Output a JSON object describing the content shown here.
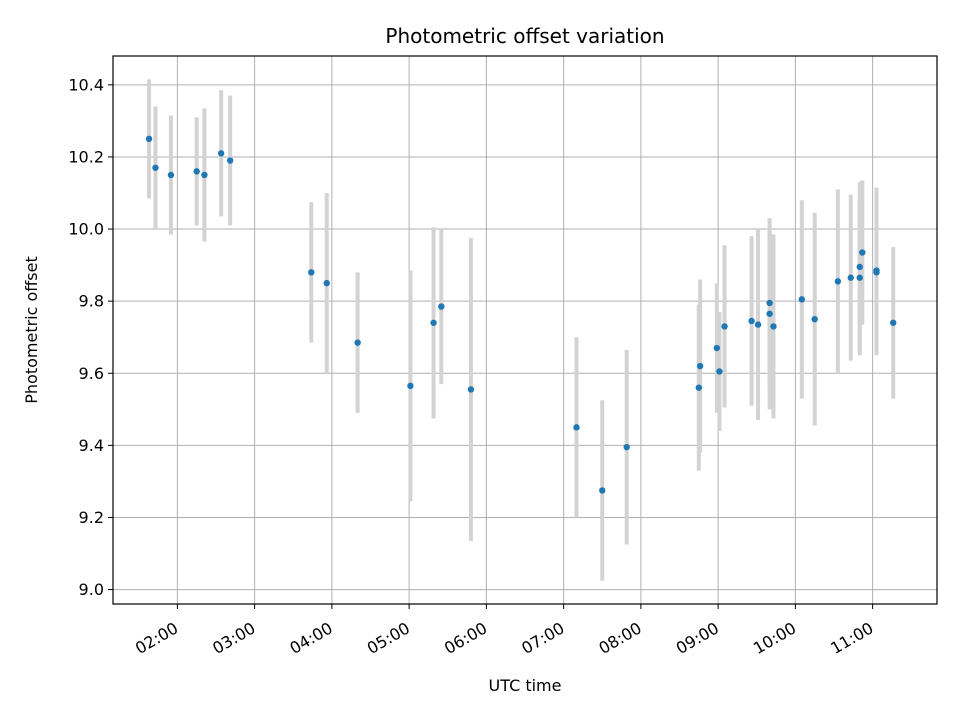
{
  "chart_data": {
    "type": "scatter",
    "title": "Photometric offset variation",
    "xlabel": "UTC time",
    "ylabel": "Photometric offset",
    "x_unit": "time of day (HH:MM)",
    "xlim": [
      "01:10",
      "11:50"
    ],
    "ylim": [
      8.96,
      10.48
    ],
    "x_ticks": [
      "02:00",
      "03:00",
      "04:00",
      "05:00",
      "06:00",
      "07:00",
      "08:00",
      "09:00",
      "10:00",
      "11:00"
    ],
    "y_ticks": [
      9.0,
      9.2,
      9.4,
      9.6,
      9.8,
      10.0,
      10.2,
      10.4
    ],
    "grid": true,
    "marker_color": "#1f77b4",
    "errorbar_color": "#d3d3d3",
    "points": [
      {
        "time": "01:38",
        "y": 10.25,
        "err": 0.165
      },
      {
        "time": "01:43",
        "y": 10.17,
        "err": 0.17
      },
      {
        "time": "01:55",
        "y": 10.15,
        "err": 0.165
      },
      {
        "time": "02:15",
        "y": 10.16,
        "err": 0.15
      },
      {
        "time": "02:21",
        "y": 10.15,
        "err": 0.185
      },
      {
        "time": "02:34",
        "y": 10.21,
        "err": 0.175
      },
      {
        "time": "02:41",
        "y": 10.19,
        "err": 0.18
      },
      {
        "time": "03:44",
        "y": 9.88,
        "err": 0.195
      },
      {
        "time": "03:56",
        "y": 9.85,
        "err": 0.25
      },
      {
        "time": "04:20",
        "y": 9.685,
        "err": 0.195
      },
      {
        "time": "05:01",
        "y": 9.565,
        "err": 0.32
      },
      {
        "time": "05:19",
        "y": 9.74,
        "err": 0.265
      },
      {
        "time": "05:25",
        "y": 9.785,
        "err": 0.215
      },
      {
        "time": "05:48",
        "y": 9.555,
        "err": 0.42
      },
      {
        "time": "07:10",
        "y": 9.45,
        "err": 0.25
      },
      {
        "time": "07:30",
        "y": 9.275,
        "err": 0.25
      },
      {
        "time": "07:49",
        "y": 9.395,
        "err": 0.27
      },
      {
        "time": "08:45",
        "y": 9.56,
        "err": 0.23
      },
      {
        "time": "08:46",
        "y": 9.62,
        "err": 0.24
      },
      {
        "time": "08:59",
        "y": 9.67,
        "err": 0.18
      },
      {
        "time": "09:01",
        "y": 9.605,
        "err": 0.165
      },
      {
        "time": "09:05",
        "y": 9.73,
        "err": 0.225
      },
      {
        "time": "09:26",
        "y": 9.745,
        "err": 0.235
      },
      {
        "time": "09:31",
        "y": 9.735,
        "err": 0.265
      },
      {
        "time": "09:40",
        "y": 9.795,
        "err": 0.235
      },
      {
        "time": "09:40",
        "y": 9.765,
        "err": 0.265
      },
      {
        "time": "09:43",
        "y": 9.73,
        "err": 0.255
      },
      {
        "time": "10:05",
        "y": 9.805,
        "err": 0.275
      },
      {
        "time": "10:15",
        "y": 9.75,
        "err": 0.295
      },
      {
        "time": "10:33",
        "y": 9.855,
        "err": 0.255
      },
      {
        "time": "10:43",
        "y": 9.865,
        "err": 0.23
      },
      {
        "time": "10:50",
        "y": 9.865,
        "err": 0.215
      },
      {
        "time": "10:50",
        "y": 9.895,
        "err": 0.235
      },
      {
        "time": "10:52",
        "y": 9.935,
        "err": 0.2
      },
      {
        "time": "11:03",
        "y": 9.885,
        "err": 0.23
      },
      {
        "time": "11:03",
        "y": 9.88,
        "err": 0.23
      },
      {
        "time": "11:16",
        "y": 9.74,
        "err": 0.21
      }
    ]
  }
}
